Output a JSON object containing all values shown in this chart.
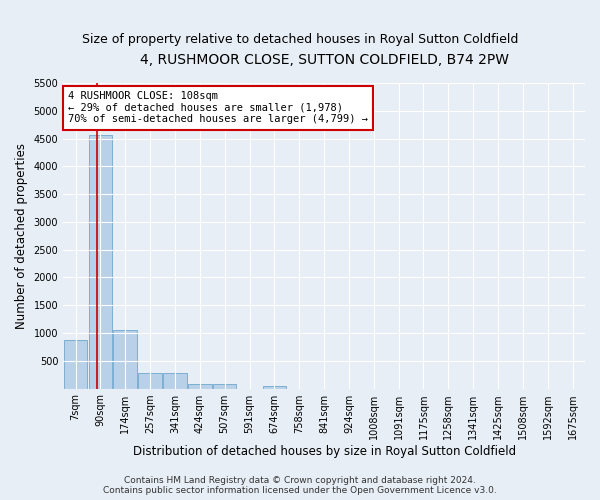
{
  "title": "4, RUSHMOOR CLOSE, SUTTON COLDFIELD, B74 2PW",
  "subtitle": "Size of property relative to detached houses in Royal Sutton Coldfield",
  "xlabel": "Distribution of detached houses by size in Royal Sutton Coldfield",
  "ylabel": "Number of detached properties",
  "categories": [
    "7sqm",
    "90sqm",
    "174sqm",
    "257sqm",
    "341sqm",
    "424sqm",
    "507sqm",
    "591sqm",
    "674sqm",
    "758sqm",
    "841sqm",
    "924sqm",
    "1008sqm",
    "1091sqm",
    "1175sqm",
    "1258sqm",
    "1341sqm",
    "1425sqm",
    "1508sqm",
    "1592sqm",
    "1675sqm"
  ],
  "values": [
    880,
    4560,
    1060,
    280,
    280,
    80,
    75,
    0,
    55,
    0,
    0,
    0,
    0,
    0,
    0,
    0,
    0,
    0,
    0,
    0,
    0
  ],
  "bar_color": "#b8d0e8",
  "bar_edge_color": "#6fa8d0",
  "highlight_line_color": "#cc0000",
  "annotation_text": "4 RUSHMOOR CLOSE: 108sqm\n← 29% of detached houses are smaller (1,978)\n70% of semi-detached houses are larger (4,799) →",
  "annotation_box_color": "#ffffff",
  "annotation_box_edge_color": "#cc0000",
  "ylim": [
    0,
    5500
  ],
  "yticks": [
    0,
    500,
    1000,
    1500,
    2000,
    2500,
    3000,
    3500,
    4000,
    4500,
    5000,
    5500
  ],
  "background_color": "#e8eef5",
  "plot_bg_color": "#e8eef5",
  "footer_line1": "Contains HM Land Registry data © Crown copyright and database right 2024.",
  "footer_line2": "Contains public sector information licensed under the Open Government Licence v3.0.",
  "title_fontsize": 10,
  "subtitle_fontsize": 9,
  "xlabel_fontsize": 8.5,
  "ylabel_fontsize": 8.5,
  "tick_fontsize": 7,
  "footer_fontsize": 6.5,
  "annot_fontsize": 7.5
}
